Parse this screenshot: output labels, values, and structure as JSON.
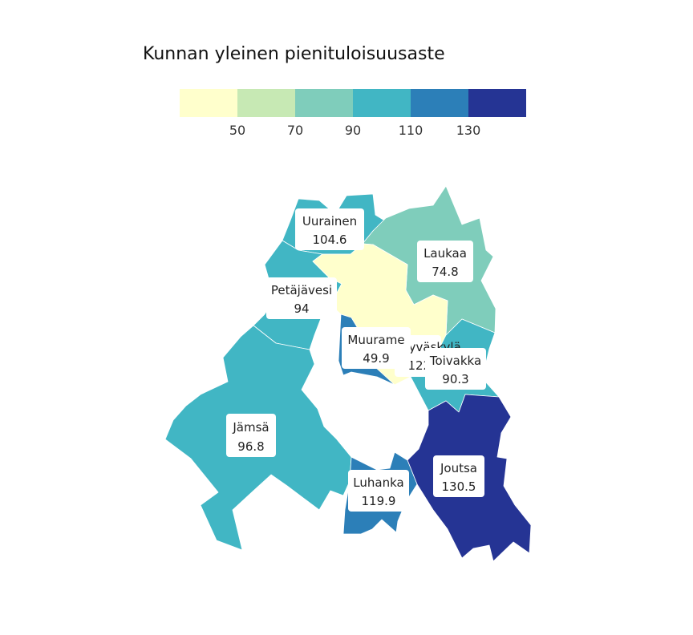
{
  "title": "Kunnan yleinen pienituloisuusaste",
  "legend": {
    "colors": [
      "#ffffcc",
      "#c7e9b4",
      "#7fcdbb",
      "#41b6c4",
      "#2c7fb8",
      "#253494"
    ],
    "ticks": [
      "50",
      "70",
      "90",
      "110",
      "130"
    ]
  },
  "municipalities": [
    {
      "name": "Uurainen",
      "value": "104.6",
      "color": "#41b6c4"
    },
    {
      "name": "Laukaa",
      "value": "74.8",
      "color": "#7fcdbb"
    },
    {
      "name": "Petäjävesi",
      "value": "94",
      "color": "#41b6c4"
    },
    {
      "name": "Muurame",
      "value": "49.9",
      "color": "#ffffcc"
    },
    {
      "name": "Jyväskylä",
      "value": "122.4",
      "color": "#2c7fb8"
    },
    {
      "name": "Toivakka",
      "value": "90.3",
      "color": "#41b6c4"
    },
    {
      "name": "Jämsä",
      "value": "96.8",
      "color": "#41b6c4"
    },
    {
      "name": "Joutsa",
      "value": "130.5",
      "color": "#253494"
    },
    {
      "name": "Luhanka",
      "value": "119.9",
      "color": "#2c7fb8"
    }
  ]
}
